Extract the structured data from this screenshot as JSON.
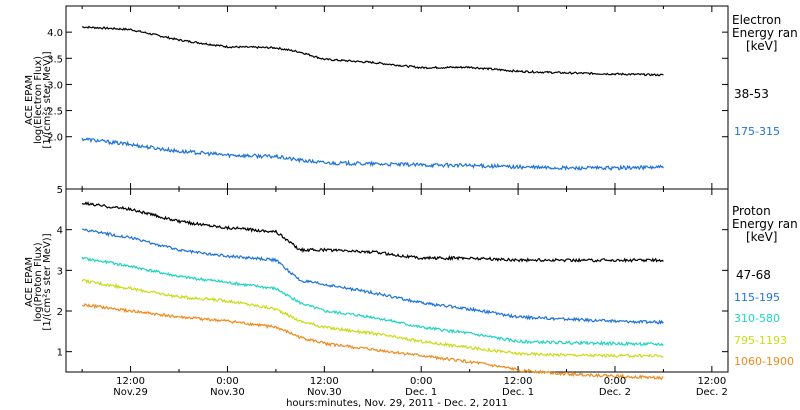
{
  "chart_data": [
    {
      "type": "line",
      "panel": "electron",
      "ylabel_lines": [
        "ACE EPAM",
        "log(Electron Flux)",
        "[1/(cm²s ster MeV)]"
      ],
      "ylim": [
        1,
        4.5
      ],
      "yticks": [
        2.0,
        2.5,
        3.0,
        3.5,
        4.0
      ],
      "ytick_labels": [
        "2.0",
        "2.5",
        "3.0",
        "3.5",
        "4.0"
      ],
      "legend_title": [
        "Electron",
        "Energy ran",
        "[keV]"
      ],
      "x": [
        "Nov 29 06:00",
        "Nov 29 12:00",
        "Nov 29 18:00",
        "Nov 30 00:00",
        "Nov 30 06:00",
        "Nov 30 09:00",
        "Nov 30 12:00",
        "Nov 30 18:00",
        "Dec 1 00:00",
        "Dec 1 06:00",
        "Dec 1 12:00",
        "Dec 1 18:00",
        "Dec 2 00:00",
        "Dec 2 06:00"
      ],
      "series": [
        {
          "name": "38-53",
          "color": "#000000",
          "values": [
            4.1,
            4.05,
            3.85,
            3.72,
            3.7,
            3.62,
            3.48,
            3.42,
            3.32,
            3.33,
            3.25,
            3.22,
            3.2,
            3.18
          ]
        },
        {
          "name": "175-315",
          "color": "#1e73d8",
          "values": [
            1.96,
            1.85,
            1.72,
            1.65,
            1.62,
            1.55,
            1.5,
            1.48,
            1.46,
            1.45,
            1.42,
            1.4,
            1.4,
            1.42
          ]
        }
      ]
    },
    {
      "type": "line",
      "panel": "proton",
      "ylabel_lines": [
        "ACE EPAM",
        "log(Proton Flux)",
        "[1/(cm²s ster MeV)]"
      ],
      "ylim": [
        0.5,
        5
      ],
      "yticks": [
        1,
        2,
        3,
        4,
        5
      ],
      "ytick_labels": [
        "1",
        "2",
        "3",
        "4",
        "5"
      ],
      "legend_title": [
        "Proton",
        "Energy ran",
        "[keV]"
      ],
      "x": [
        "Nov 29 06:00",
        "Nov 29 12:00",
        "Nov 29 18:00",
        "Nov 30 00:00",
        "Nov 30 06:00",
        "Nov 30 09:00",
        "Nov 30 12:00",
        "Nov 30 18:00",
        "Dec 1 00:00",
        "Dec 1 06:00",
        "Dec 1 12:00",
        "Dec 1 18:00",
        "Dec 2 00:00",
        "Dec 2 06:00"
      ],
      "series": [
        {
          "name": "47-68",
          "color": "#000000",
          "values": [
            4.65,
            4.5,
            4.2,
            4.05,
            3.95,
            3.5,
            3.5,
            3.45,
            3.3,
            3.3,
            3.25,
            3.25,
            3.25,
            3.25
          ]
        },
        {
          "name": "115-195",
          "color": "#1e73d8",
          "values": [
            4.0,
            3.8,
            3.5,
            3.35,
            3.25,
            2.75,
            2.65,
            2.45,
            2.2,
            2.05,
            1.85,
            1.8,
            1.75,
            1.72
          ]
        },
        {
          "name": "310-580",
          "color": "#1fd4c0",
          "values": [
            3.3,
            3.1,
            2.85,
            2.7,
            2.55,
            2.2,
            2.0,
            1.85,
            1.6,
            1.45,
            1.25,
            1.22,
            1.2,
            1.18
          ]
        },
        {
          "name": "795-1193",
          "color": "#c9dc16",
          "values": [
            2.75,
            2.55,
            2.35,
            2.25,
            2.05,
            1.75,
            1.6,
            1.45,
            1.25,
            1.1,
            0.95,
            0.92,
            0.9,
            0.9
          ]
        },
        {
          "name": "1060-1900",
          "color": "#f08a1c",
          "values": [
            2.15,
            2.0,
            1.85,
            1.75,
            1.6,
            1.35,
            1.2,
            1.05,
            0.9,
            0.75,
            0.55,
            0.45,
            0.4,
            0.35
          ]
        }
      ]
    }
  ],
  "x_axis": {
    "ticks": [
      {
        "time": "12:00",
        "date": "Nov.29"
      },
      {
        "time": "0:00",
        "date": "Nov.30"
      },
      {
        "time": "12:00",
        "date": "Nov.30"
      },
      {
        "time": "0:00",
        "date": "Dec. 1"
      },
      {
        "time": "12:00",
        "date": "Dec. 1"
      },
      {
        "time": "0:00",
        "date": "Dec. 2"
      },
      {
        "time": "12:00",
        "date": "Dec. 2"
      }
    ],
    "xlabel": "hours:minutes, Nov. 29, 2011 - Dec. 2, 2011"
  }
}
